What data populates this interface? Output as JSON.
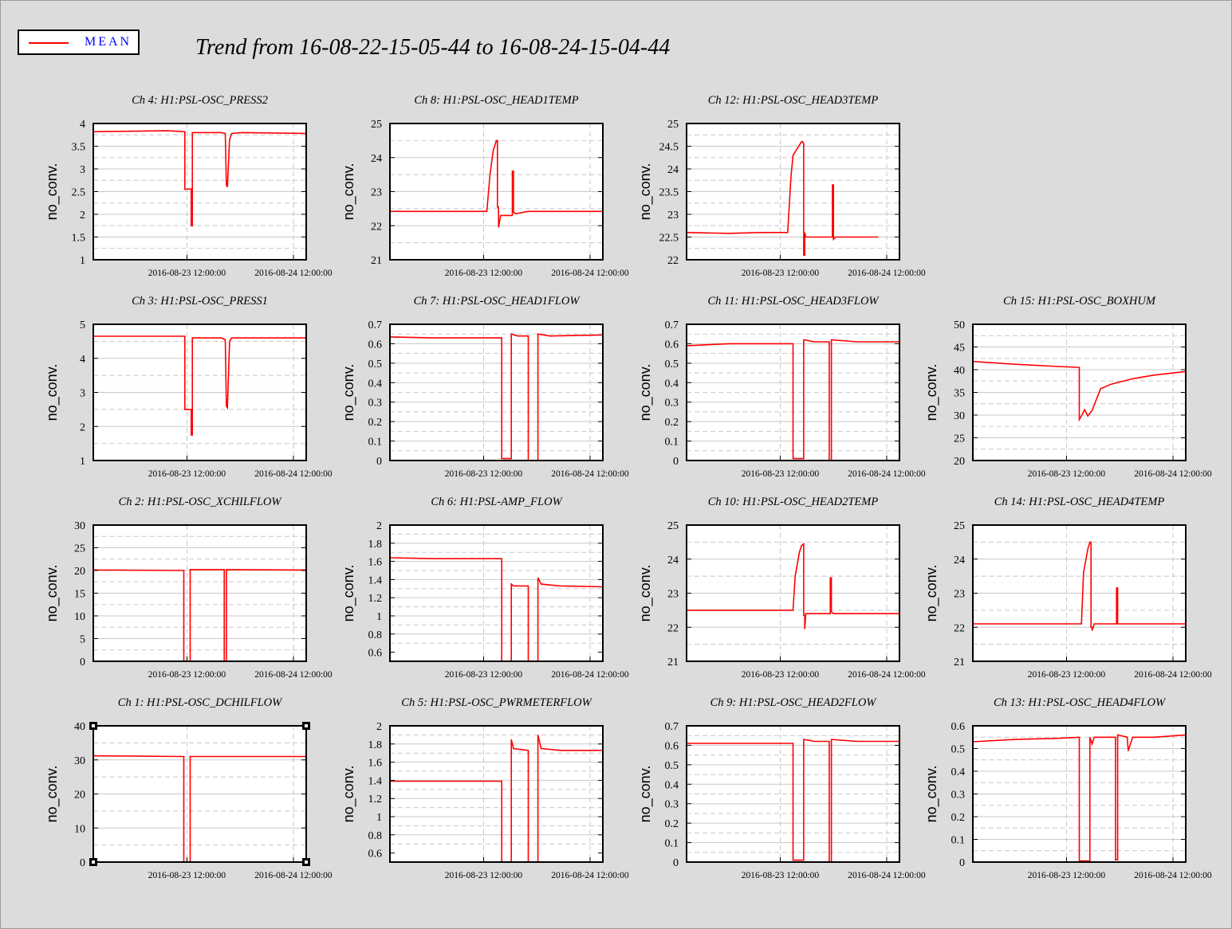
{
  "title": "Trend from 16-08-22-15-05-44 to 16-08-24-15-04-44",
  "legend": {
    "label": "MEAN",
    "color": "#ff0000"
  },
  "colors": {
    "trace": "#ff0000",
    "plot_bg": "#ffffff",
    "grid": "#c8c8c8",
    "page_bg": "#dcdcdc"
  },
  "chart_data": [
    {
      "type": "line",
      "title": "Ch 4: H1:PSL-OSC_PRESS2",
      "ylabel": "no_conv.",
      "xlabel": "",
      "ylim": [
        1,
        4
      ],
      "yticks": [
        "1",
        "1.5",
        "2",
        "2.5",
        "3",
        "3.5",
        "4"
      ],
      "xlim": [
        -1.0,
        1.0
      ],
      "xticks": [
        {
          "x": -0.12,
          "label": "2016-08-23 12:00:00"
        },
        {
          "x": 0.88,
          "label": "2016-08-24 12:00:00"
        }
      ],
      "series": [
        {
          "x": [
            -1.0,
            -0.3,
            -0.15,
            -0.14,
            -0.14,
            -0.08,
            -0.08,
            -0.07,
            -0.07,
            0.2,
            0.24,
            0.25,
            0.26,
            0.28,
            0.3,
            0.4,
            1.0
          ],
          "values": [
            3.82,
            3.84,
            3.82,
            3.82,
            2.55,
            2.56,
            1.75,
            1.75,
            3.8,
            3.8,
            3.78,
            2.65,
            2.6,
            3.65,
            3.78,
            3.8,
            3.78
          ]
        }
      ]
    },
    {
      "type": "line",
      "title": "Ch 8: H1:PSL-OSC_HEAD1TEMP",
      "ylabel": "no_conv.",
      "xlabel": "",
      "ylim": [
        21,
        25
      ],
      "yticks": [
        "21",
        "22",
        "23",
        "24",
        "25"
      ],
      "xlim": [
        -1.0,
        1.0
      ],
      "xticks": [
        {
          "x": -0.12,
          "label": "2016-08-23 12:00:00"
        },
        {
          "x": 0.88,
          "label": "2016-08-24 12:00:00"
        }
      ],
      "series": [
        {
          "x": [
            -1.0,
            -0.1,
            -0.09,
            -0.06,
            -0.03,
            0.0,
            0.01,
            0.01,
            0.02,
            0.02,
            0.04,
            0.15,
            0.15,
            0.16,
            0.16,
            0.18,
            0.3,
            1.0
          ],
          "values": [
            22.42,
            22.42,
            22.42,
            23.5,
            24.2,
            24.5,
            24.5,
            22.55,
            22.55,
            21.95,
            22.3,
            22.3,
            23.6,
            23.6,
            22.4,
            22.35,
            22.42,
            22.42
          ]
        }
      ]
    },
    {
      "type": "line",
      "title": "Ch 12: H1:PSL-OSC_HEAD3TEMP",
      "ylabel": "no_conv.",
      "xlabel": "",
      "ylim": [
        22,
        25
      ],
      "yticks": [
        "22",
        "22.5",
        "23",
        "23.5",
        "24",
        "24.5",
        "25"
      ],
      "xlim": [
        -1.0,
        1.0
      ],
      "xticks": [
        {
          "x": -0.12,
          "label": "2016-08-23 12:00:00"
        },
        {
          "x": 0.88,
          "label": "2016-08-24 12:00:00"
        }
      ],
      "series": [
        {
          "x": [
            -1.0,
            -0.6,
            -0.3,
            -0.1,
            -0.05,
            -0.02,
            0.0,
            0.08,
            0.09,
            0.1,
            0.1,
            0.11,
            0.11,
            0.12,
            0.36,
            0.37,
            0.37,
            0.38,
            0.38,
            0.4,
            0.8
          ],
          "values": [
            22.6,
            22.58,
            22.6,
            22.6,
            22.6,
            23.8,
            24.3,
            24.6,
            24.6,
            24.55,
            22.1,
            22.1,
            22.6,
            22.5,
            22.5,
            22.5,
            23.65,
            23.65,
            22.45,
            22.5,
            22.5
          ]
        }
      ]
    },
    {
      "type": "line",
      "title": "Ch 3: H1:PSL-OSC_PRESS1",
      "ylabel": "no_conv.",
      "xlabel": "",
      "ylim": [
        1,
        5
      ],
      "yticks": [
        "1",
        "2",
        "3",
        "4",
        "5"
      ],
      "xlim": [
        -1.0,
        1.0
      ],
      "xticks": [
        {
          "x": -0.12,
          "label": "2016-08-23 12:00:00"
        },
        {
          "x": 0.88,
          "label": "2016-08-24 12:00:00"
        }
      ],
      "series": [
        {
          "x": [
            -1.0,
            -0.2,
            -0.15,
            -0.14,
            -0.14,
            -0.08,
            -0.08,
            -0.07,
            -0.07,
            0.2,
            0.24,
            0.25,
            0.26,
            0.28,
            0.3,
            1.0
          ],
          "values": [
            4.65,
            4.65,
            4.65,
            4.65,
            2.5,
            2.5,
            1.75,
            1.75,
            4.6,
            4.6,
            4.55,
            2.6,
            2.55,
            4.5,
            4.6,
            4.6
          ]
        }
      ]
    },
    {
      "type": "line",
      "title": "Ch 7: H1:PSL-OSC_HEAD1FLOW",
      "ylabel": "no_conv.",
      "xlabel": "",
      "ylim": [
        0,
        0.7
      ],
      "yticks": [
        "0",
        "0.1",
        "0.2",
        "0.3",
        "0.4",
        "0.5",
        "0.6",
        "0.7"
      ],
      "xlim": [
        -1.0,
        1.0
      ],
      "xticks": [
        {
          "x": -0.12,
          "label": "2016-08-23 12:00:00"
        },
        {
          "x": 0.88,
          "label": "2016-08-24 12:00:00"
        }
      ],
      "series": [
        {
          "x": [
            -1.0,
            -0.6,
            0.05,
            0.05,
            0.14,
            0.14,
            0.2,
            0.3,
            0.3,
            0.39,
            0.39,
            0.5,
            1.0
          ],
          "values": [
            0.635,
            0.63,
            0.63,
            0.01,
            0.01,
            0.65,
            0.64,
            0.64,
            0.0,
            0.0,
            0.65,
            0.64,
            0.645
          ]
        }
      ]
    },
    {
      "type": "line",
      "title": "Ch 11: H1:PSL-OSC_HEAD3FLOW",
      "ylabel": "no_conv.",
      "xlabel": "",
      "ylim": [
        0,
        0.7
      ],
      "yticks": [
        "0",
        "0.1",
        "0.2",
        "0.3",
        "0.4",
        "0.5",
        "0.6",
        "0.7"
      ],
      "xlim": [
        -1.0,
        1.0
      ],
      "xticks": [
        {
          "x": -0.12,
          "label": "2016-08-23 12:00:00"
        },
        {
          "x": 0.88,
          "label": "2016-08-24 12:00:00"
        }
      ],
      "series": [
        {
          "x": [
            -1.0,
            -0.6,
            -0.3,
            0.0,
            0.0,
            0.1,
            0.1,
            0.2,
            0.34,
            0.34,
            0.36,
            0.36,
            0.6,
            1.0
          ],
          "values": [
            0.59,
            0.6,
            0.6,
            0.6,
            0.01,
            0.01,
            0.62,
            0.61,
            0.61,
            0.0,
            0.0,
            0.62,
            0.61,
            0.61
          ]
        }
      ]
    },
    {
      "type": "line",
      "title": "Ch 15: H1:PSL-OSC_BOXHUM",
      "ylabel": "no_conv.",
      "xlabel": "",
      "ylim": [
        20,
        50
      ],
      "yticks": [
        "20",
        "25",
        "30",
        "35",
        "40",
        "45",
        "50"
      ],
      "xlim": [
        -1.0,
        1.0
      ],
      "xticks": [
        {
          "x": -0.12,
          "label": "2016-08-23 12:00:00"
        },
        {
          "x": 0.88,
          "label": "2016-08-24 12:00:00"
        }
      ],
      "series": [
        {
          "x": [
            -1.0,
            -0.6,
            -0.2,
            0.0,
            0.0,
            0.02,
            0.05,
            0.08,
            0.12,
            0.15,
            0.2,
            0.3,
            0.5,
            0.7,
            1.0
          ],
          "values": [
            41.8,
            41.2,
            40.7,
            40.5,
            29.0,
            29.8,
            31.2,
            29.8,
            31.0,
            32.8,
            35.8,
            36.8,
            38.0,
            38.8,
            39.6
          ]
        }
      ]
    },
    {
      "type": "line",
      "title": "Ch 2: H1:PSL-OSC_XCHILFLOW",
      "ylabel": "no_conv.",
      "xlabel": "",
      "ylim": [
        0,
        30
      ],
      "yticks": [
        "0",
        "5",
        "10",
        "15",
        "20",
        "25",
        "30"
      ],
      "xlim": [
        -1.0,
        1.0
      ],
      "xticks": [
        {
          "x": -0.12,
          "label": "2016-08-23 12:00:00"
        },
        {
          "x": 0.88,
          "label": "2016-08-24 12:00:00"
        }
      ],
      "series": [
        {
          "x": [
            -1.0,
            -0.15,
            -0.15,
            -0.09,
            -0.09,
            0.2,
            0.23,
            0.23,
            0.25,
            0.25,
            1.0
          ],
          "values": [
            20.1,
            20.0,
            0.0,
            0.0,
            20.2,
            20.2,
            20.2,
            0.0,
            0.0,
            20.2,
            20.1
          ]
        }
      ]
    },
    {
      "type": "line",
      "title": "Ch 6: H1:PSL-AMP_FLOW",
      "ylabel": "no_conv.",
      "xlabel": "",
      "ylim": [
        0.5,
        2
      ],
      "yticks": [
        "0.6",
        "0.8",
        "1",
        "1.2",
        "1.4",
        "1.6",
        "1.8",
        "2"
      ],
      "xlim": [
        -1.0,
        1.0
      ],
      "xticks": [
        {
          "x": -0.12,
          "label": "2016-08-23 12:00:00"
        },
        {
          "x": 0.88,
          "label": "2016-08-24 12:00:00"
        }
      ],
      "series": [
        {
          "x": [
            -1.0,
            -0.6,
            0.05,
            0.05,
            0.14,
            0.14,
            0.16,
            0.3,
            0.3,
            0.39,
            0.39,
            0.42,
            0.6,
            1.0
          ],
          "values": [
            1.64,
            1.63,
            1.63,
            0.5,
            0.5,
            1.35,
            1.33,
            1.33,
            0.5,
            0.5,
            1.42,
            1.35,
            1.33,
            1.32
          ]
        }
      ]
    },
    {
      "type": "line",
      "title": "Ch 10: H1:PSL-OSC_HEAD2TEMP",
      "ylabel": "no_conv.",
      "xlabel": "",
      "ylim": [
        21,
        25
      ],
      "yticks": [
        "21",
        "22",
        "23",
        "24",
        "25"
      ],
      "xlim": [
        -1.0,
        1.0
      ],
      "xticks": [
        {
          "x": -0.12,
          "label": "2016-08-23 12:00:00"
        },
        {
          "x": 0.88,
          "label": "2016-08-24 12:00:00"
        }
      ],
      "series": [
        {
          "x": [
            -1.0,
            -0.5,
            0.0,
            0.0,
            0.02,
            0.06,
            0.08,
            0.1,
            0.1,
            0.11,
            0.11,
            0.12,
            0.34,
            0.35,
            0.35,
            0.36,
            0.36,
            0.38,
            1.0
          ],
          "values": [
            22.5,
            22.5,
            22.5,
            22.5,
            23.5,
            24.2,
            24.4,
            24.45,
            22.35,
            22.35,
            21.95,
            22.4,
            22.4,
            22.4,
            23.45,
            23.45,
            22.45,
            22.4,
            22.4
          ]
        }
      ]
    },
    {
      "type": "line",
      "title": "Ch 14: H1:PSL-OSC_HEAD4TEMP",
      "ylabel": "no_conv.",
      "xlabel": "",
      "ylim": [
        21,
        25
      ],
      "yticks": [
        "21",
        "22",
        "23",
        "24",
        "25"
      ],
      "xlim": [
        -1.0,
        1.0
      ],
      "xticks": [
        {
          "x": -0.12,
          "label": "2016-08-23 12:00:00"
        },
        {
          "x": 0.88,
          "label": "2016-08-24 12:00:00"
        }
      ],
      "series": [
        {
          "x": [
            -1.0,
            -0.5,
            0.0,
            0.02,
            0.04,
            0.08,
            0.1,
            0.11,
            0.11,
            0.12,
            0.12,
            0.14,
            0.34,
            0.35,
            0.35,
            0.36,
            0.36,
            0.38,
            1.0
          ],
          "values": [
            22.1,
            22.1,
            22.1,
            22.1,
            23.6,
            24.3,
            24.5,
            24.5,
            22.0,
            22.0,
            21.9,
            22.1,
            22.1,
            22.1,
            23.15,
            23.15,
            22.1,
            22.1,
            22.1
          ]
        }
      ]
    },
    {
      "type": "line",
      "title": "Ch 1: H1:PSL-OSC_DCHILFLOW",
      "ylabel": "no_conv.",
      "xlabel": "",
      "ylim": [
        0,
        40
      ],
      "yticks": [
        "0",
        "10",
        "20",
        "30",
        "40"
      ],
      "xlim": [
        -1.0,
        1.0
      ],
      "xticks": [
        {
          "x": -0.12,
          "label": "2016-08-23 12:00:00"
        },
        {
          "x": 0.88,
          "label": "2016-08-24 12:00:00"
        }
      ],
      "series": [
        {
          "x": [
            -1.0,
            -0.15,
            -0.15,
            -0.09,
            -0.09,
            1.0
          ],
          "values": [
            31.2,
            31.0,
            0.0,
            0.0,
            31.0,
            31.0
          ]
        }
      ]
    },
    {
      "type": "line",
      "title": "Ch 5: H1:PSL-OSC_PWRMETERFLOW",
      "ylabel": "no_conv.",
      "xlabel": "",
      "ylim": [
        0.5,
        2
      ],
      "yticks": [
        "0.6",
        "0.8",
        "1",
        "1.2",
        "1.4",
        "1.6",
        "1.8",
        "2"
      ],
      "xlim": [
        -1.0,
        1.0
      ],
      "xticks": [
        {
          "x": -0.12,
          "label": "2016-08-23 12:00:00"
        },
        {
          "x": 0.88,
          "label": "2016-08-24 12:00:00"
        }
      ],
      "series": [
        {
          "x": [
            -1.0,
            -0.6,
            0.05,
            0.05,
            0.14,
            0.14,
            0.16,
            0.3,
            0.3,
            0.39,
            0.39,
            0.42,
            0.6,
            1.0
          ],
          "values": [
            1.39,
            1.39,
            1.39,
            0.5,
            0.5,
            1.85,
            1.75,
            1.73,
            0.5,
            0.5,
            1.9,
            1.75,
            1.73,
            1.73
          ]
        }
      ]
    },
    {
      "type": "line",
      "title": "Ch 9: H1:PSL-OSC_HEAD2FLOW",
      "ylabel": "no_conv.",
      "xlabel": "",
      "ylim": [
        0,
        0.7
      ],
      "yticks": [
        "0",
        "0.1",
        "0.2",
        "0.3",
        "0.4",
        "0.5",
        "0.6",
        "0.7"
      ],
      "xlim": [
        -1.0,
        1.0
      ],
      "xticks": [
        {
          "x": -0.12,
          "label": "2016-08-23 12:00:00"
        },
        {
          "x": 0.88,
          "label": "2016-08-24 12:00:00"
        }
      ],
      "series": [
        {
          "x": [
            -1.0,
            -0.5,
            0.0,
            0.0,
            0.1,
            0.1,
            0.2,
            0.34,
            0.34,
            0.36,
            0.36,
            0.6,
            1.0
          ],
          "values": [
            0.61,
            0.61,
            0.61,
            0.01,
            0.01,
            0.63,
            0.62,
            0.62,
            0.0,
            0.0,
            0.63,
            0.62,
            0.62
          ]
        }
      ]
    },
    {
      "type": "line",
      "title": "Ch 13: H1:PSL-OSC_HEAD4FLOW",
      "ylabel": "no_conv.",
      "xlabel": "",
      "ylim": [
        0,
        0.6
      ],
      "yticks": [
        "0",
        "0.1",
        "0.2",
        "0.3",
        "0.4",
        "0.5",
        "0.6"
      ],
      "xlim": [
        -1.0,
        1.0
      ],
      "xticks": [
        {
          "x": -0.12,
          "label": "2016-08-23 12:00:00"
        },
        {
          "x": 0.88,
          "label": "2016-08-24 12:00:00"
        }
      ],
      "series": [
        {
          "x": [
            -1.0,
            -0.6,
            -0.2,
            0.0,
            0.0,
            0.1,
            0.1,
            0.12,
            0.14,
            0.34,
            0.34,
            0.36,
            0.36,
            0.45,
            0.46,
            0.5,
            0.7,
            1.0
          ],
          "values": [
            0.53,
            0.54,
            0.545,
            0.55,
            0.005,
            0.005,
            0.55,
            0.52,
            0.55,
            0.55,
            0.01,
            0.01,
            0.56,
            0.55,
            0.49,
            0.55,
            0.55,
            0.56
          ]
        }
      ]
    }
  ]
}
